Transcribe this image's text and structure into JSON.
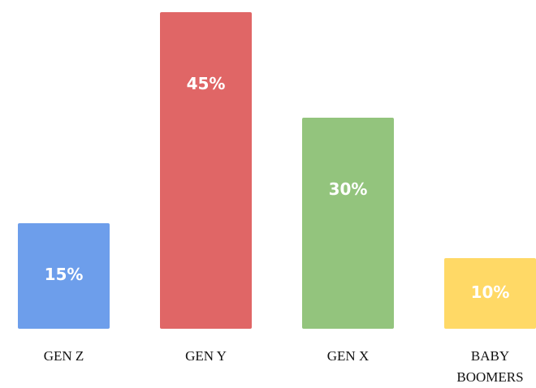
{
  "chart_data": {
    "type": "bar",
    "categories": [
      "GEN Z",
      "GEN Y",
      "GEN X",
      "BABY BOOMERS"
    ],
    "values": [
      15,
      45,
      30,
      10
    ],
    "value_labels": [
      "15%",
      "45%",
      "30%",
      "10%"
    ],
    "colors": [
      "#6d9eeb",
      "#e06666",
      "#93c47d",
      "#ffd966"
    ]
  }
}
